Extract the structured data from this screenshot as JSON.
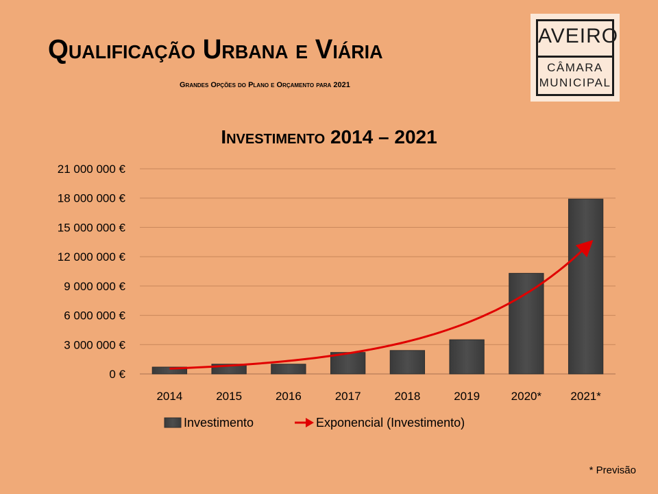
{
  "header": {
    "title": "Qualificação Urbana e Viária",
    "subtitle": "Grandes Opções do Plano e Orçamento para 2021"
  },
  "logo": {
    "name": "AVEIRO",
    "line1": "CÂMARA",
    "line2": "MUNICIPAL"
  },
  "footnote": "* Previsão",
  "colors": {
    "background": "#f0aa78",
    "bar": "#4d4d4d",
    "trend": "#e00000",
    "grid": "#c8865a"
  },
  "chart_data": {
    "type": "bar",
    "title": "Investimento 2014 – 2021",
    "categories": [
      "2014",
      "2015",
      "2016",
      "2017",
      "2018",
      "2019",
      "2020*",
      "2021*"
    ],
    "series": [
      {
        "name": "Investimento",
        "values": [
          700000,
          1000000,
          1000000,
          2200000,
          2400000,
          3500000,
          10300000,
          17900000
        ]
      }
    ],
    "trendline": {
      "name": "Exponencial (Investimento)",
      "type": "exponential"
    },
    "ylim": [
      0,
      21000000
    ],
    "yticks": [
      "0 €",
      "3 000 000 €",
      "6 000 000 €",
      "9 000 000 €",
      "12 000 000 €",
      "15 000 000 €",
      "18 000 000 €",
      "21 000 000 €"
    ],
    "grid": true,
    "legend": "bottom",
    "xlabel": "",
    "ylabel": ""
  }
}
